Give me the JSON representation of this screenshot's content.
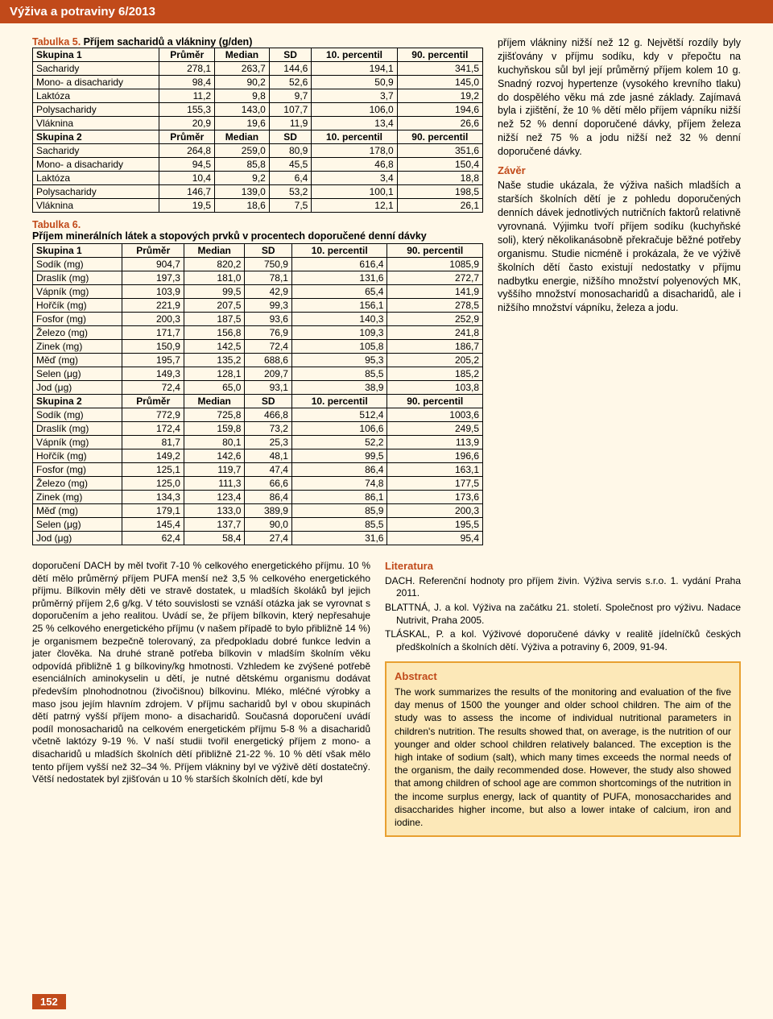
{
  "header": "Výživa a potraviny 6/2013",
  "page_number": "152",
  "table5": {
    "title": "Tabulka 5.",
    "subtitle": "Příjem sacharidů a vlákniny (g/den)",
    "columns": [
      "",
      "Průměr",
      "Median",
      "SD",
      "10. percentil",
      "90. percentil"
    ],
    "group1_label": "Skupina 1",
    "group1_rows": [
      [
        "Sacharidy",
        "278,1",
        "263,7",
        "144,6",
        "194,1",
        "341,5"
      ],
      [
        "Mono- a disacharidy",
        "98,4",
        "90,2",
        "52,6",
        "50,9",
        "145,0"
      ],
      [
        "Laktóza",
        "11,2",
        "9,8",
        "9,7",
        "3,7",
        "19,2"
      ],
      [
        "Polysacharidy",
        "155,3",
        "143,0",
        "107,7",
        "106,0",
        "194,6"
      ],
      [
        "Vláknina",
        "20,9",
        "19,6",
        "11,9",
        "13,4",
        "26,6"
      ]
    ],
    "group2_label": "Skupina 2",
    "group2_rows": [
      [
        "Sacharidy",
        "264,8",
        "259,0",
        "80,9",
        "178,0",
        "351,6"
      ],
      [
        "Mono- a disacharidy",
        "94,5",
        "85,8",
        "45,5",
        "46,8",
        "150,4"
      ],
      [
        "Laktóza",
        "10,4",
        "9,2",
        "6,4",
        "3,4",
        "18,8"
      ],
      [
        "Polysacharidy",
        "146,7",
        "139,0",
        "53,2",
        "100,1",
        "198,5"
      ],
      [
        "Vláknina",
        "19,5",
        "18,6",
        "7,5",
        "12,1",
        "26,1"
      ]
    ]
  },
  "table6": {
    "title": "Tabulka 6.",
    "subtitle": "Příjem minerálních látek a stopových prvků v procentech doporučené denní dávky",
    "columns": [
      "",
      "Průměr",
      "Median",
      "SD",
      "10. percentil",
      "90. percentil"
    ],
    "group1_label": "Skupina 1",
    "group1_rows": [
      [
        "Sodík (mg)",
        "904,7",
        "820,2",
        "750,9",
        "616,4",
        "1085,9"
      ],
      [
        "Draslík (mg)",
        "197,3",
        "181,0",
        "78,1",
        "131,6",
        "272,7"
      ],
      [
        "Vápník (mg)",
        "103,9",
        "99,5",
        "42,9",
        "65,4",
        "141,9"
      ],
      [
        "Hořčík (mg)",
        "221,9",
        "207,5",
        "99,3",
        "156,1",
        "278,5"
      ],
      [
        "Fosfor (mg)",
        "200,3",
        "187,5",
        "93,6",
        "140,3",
        "252,9"
      ],
      [
        "Železo (mg)",
        "171,7",
        "156,8",
        "76,9",
        "109,3",
        "241,8"
      ],
      [
        "Zinek (mg)",
        "150,9",
        "142,5",
        "72,4",
        "105,8",
        "186,7"
      ],
      [
        "Měď (mg)",
        "195,7",
        "135,2",
        "688,6",
        "95,3",
        "205,2"
      ],
      [
        "Selen (μg)",
        "149,3",
        "128,1",
        "209,7",
        "85,5",
        "185,2"
      ],
      [
        "Jod (μg)",
        "72,4",
        "65,0",
        "93,1",
        "38,9",
        "103,8"
      ]
    ],
    "group2_label": "Skupina 2",
    "group2_rows": [
      [
        "Sodík (mg)",
        "772,9",
        "725,8",
        "466,8",
        "512,4",
        "1003,6"
      ],
      [
        "Draslík (mg)",
        "172,4",
        "159,8",
        "73,2",
        "106,6",
        "249,5"
      ],
      [
        "Vápník (mg)",
        "81,7",
        "80,1",
        "25,3",
        "52,2",
        "113,9"
      ],
      [
        "Hořčík (mg)",
        "149,2",
        "142,6",
        "48,1",
        "99,5",
        "196,6"
      ],
      [
        "Fosfor (mg)",
        "125,1",
        "119,7",
        "47,4",
        "86,4",
        "163,1"
      ],
      [
        "Železo (mg)",
        "125,0",
        "111,3",
        "66,6",
        "74,8",
        "177,5"
      ],
      [
        "Zinek (mg)",
        "134,3",
        "123,4",
        "86,4",
        "86,1",
        "173,6"
      ],
      [
        "Měď (mg)",
        "179,1",
        "133,0",
        "389,9",
        "85,9",
        "200,3"
      ],
      [
        "Selen (μg)",
        "145,4",
        "137,7",
        "90,0",
        "85,5",
        "195,5"
      ],
      [
        "Jod (μg)",
        "62,4",
        "58,4",
        "27,4",
        "31,6",
        "95,4"
      ]
    ]
  },
  "right_text": "příjem vlákniny nižší než 12 g. Největší rozdíly byly zjišťovány v příjmu sodíku, kdy v přepočtu na kuchyňskou sůl byl její průměrný příjem kolem 10 g. Snadný rozvoj hypertenze (vysokého krevního tlaku) do dospělého věku má zde jasné základy. Zajímavá byla i zjištění, že 10 % dětí mělo příjem vápníku nižší než 52 % denní doporučené dávky, příjem železa nižší než 75 % a jodu nižší než 32 % denní doporučené dávky.",
  "zaver_title": "Závěr",
  "zaver_text": "Naše studie ukázala, že výživa našich mladších a starších školních dětí je z pohledu doporučených denních dávek jednotlivých nutričních faktorů relativně vyrovnaná. Výjimku tvoří příjem sodíku (kuchyňské soli), který několikanásobně překračuje běžné potřeby organismu. Studie nicméně i prokázala, že ve výživě školních dětí často existují nedostatky v příjmu nadbytku energie, nižšího množství polyenových MK, vyššího množství monosacharidů a disacharidů, ale i nižšího množství vápníku, železa a jodu.",
  "below_left": "doporučení DACH by měl tvořit 7-10 % celkového energetického příjmu. 10 % dětí mělo průměrný příjem PUFA menší než 3,5 % celkového energetického příjmu. Bílkovin měly děti ve stravě dostatek, u mladších školáků byl jejich průměrný příjem 2,6 g/kg. V této souvislosti se vznáší otázka jak se vyrovnat s doporučením a jeho realitou. Uvádí se, že příjem bílkovin, který nepřesahuje 25 % celkového energetického příjmu (v našem případě to bylo přibližně 14 %) je organismem bezpečně tolerovaný, za předpokladu dobré funkce ledvin a jater člověka. Na druhé straně potřeba bílkovin v mladším školním věku odpovídá přibližně 1 g bílkoviny/kg hmotnosti. Vzhledem ke zvýšené potřebě esenciálních aminokyselin u dětí, je nutné dětskému organismu dodávat především plnohodnotnou (živočišnou) bílkovinu. Mléko, mléčné výrobky a maso jsou jejím hlavním zdrojem. V příjmu sacharidů byl v obou skupinách dětí patrný vyšší příjem mono- a disacharidů. Současná doporučení uvádí podíl monosacharidů na celkovém energetickém příjmu 5-8 % a disacharidů včetně laktózy 9-19 %. V naší studii tvořil energetický příjem z mono- a disacharidů u mladších školních dětí přibližně 21-22 %. 10 % dětí však mělo tento příjem vyšší než 32–34 %. Příjem vlákniny byl ve výživě dětí dostatečný. Větší nedostatek byl zjišťován u 10 % starších školních dětí, kde byl",
  "literatura_title": "Literatura",
  "literatura": [
    {
      "txt": "DACH. Referenční hodnoty pro příjem živin. Výživa servis s.r.o. 1. vydání Praha 2011."
    },
    {
      "txt": "BLATTNÁ, J. a kol. Výživa na začátku 21. století. Společnost pro výživu. Nadace Nutrivit, Praha 2005."
    },
    {
      "txt": "TLÁSKAL, P. a kol. Výživové doporučené dávky v realitě jídelníčků českých předškolních a školních dětí. Výživa a potraviny 6, 2009, 91-94."
    }
  ],
  "abstract_title": "Abstract",
  "abstract_text": "The work summarizes the results of the monitoring and evaluation of the five day menus of 1500 the younger and older school children. The aim of the study was to assess the income of individual nutritional parameters in children's nutrition. The results showed that, on average, is the nutrition of our younger and older school children relatively balanced. The exception is the high intake of sodium (salt), which many times exceeds the normal needs of the organism, the daily recommended dose. However, the study also showed that among children of school age are common shortcomings of the nutrition in the income surplus energy, lack of quantity of PUFA, monosaccharides and disaccharides higher income, but also a lower intake of calcium, iron and iodine."
}
